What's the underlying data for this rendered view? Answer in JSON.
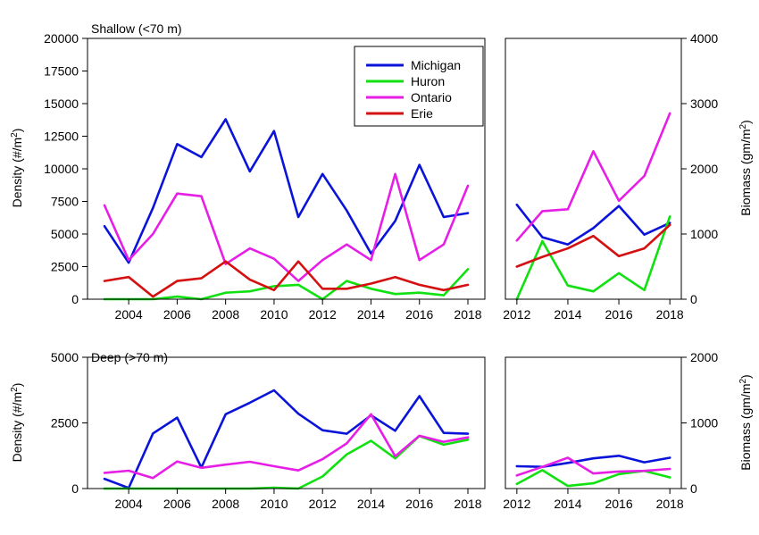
{
  "figure": {
    "ylabel_density": "Density (#/m",
    "ylabel_biomass": "Biomass (gm/m",
    "ylabel_sup": "2",
    "ylabel_close": ")"
  },
  "legend": [
    {
      "name": "Michigan",
      "color": "#0a14d8"
    },
    {
      "name": "Huron",
      "color": "#11e011"
    },
    {
      "name": "Ontario",
      "color": "#e61ee6"
    },
    {
      "name": "Erie",
      "color": "#d41010"
    }
  ],
  "chart_data": [
    {
      "id": "shallow-density",
      "type": "line",
      "title": "Shallow (<70 m)",
      "ylabel": "Density (#/m2)",
      "xlim": [
        2002.3,
        2018.7
      ],
      "ylim": [
        0,
        20000
      ],
      "xticks": [
        2004,
        2006,
        2008,
        2010,
        2012,
        2014,
        2016,
        2018
      ],
      "yticks": [
        0,
        2500,
        5000,
        7500,
        10000,
        12500,
        15000,
        17500,
        20000
      ],
      "x": [
        2003,
        2004,
        2005,
        2006,
        2007,
        2008,
        2009,
        2010,
        2011,
        2012,
        2013,
        2014,
        2015,
        2016,
        2017,
        2018
      ],
      "series": [
        {
          "name": "Michigan",
          "color": "#0a14d8",
          "values": [
            5600,
            2800,
            7000,
            11900,
            10900,
            13800,
            9800,
            12900,
            6300,
            9600,
            6800,
            3500,
            6000,
            10300,
            6300,
            6600
          ]
        },
        {
          "name": "Huron",
          "color": "#11e011",
          "values": [
            0,
            0,
            0,
            200,
            0,
            500,
            600,
            1000,
            1100,
            0,
            1400,
            800,
            400,
            500,
            300,
            2300
          ]
        },
        {
          "name": "Ontario",
          "color": "#e61ee6",
          "values": [
            7200,
            3000,
            5000,
            8100,
            7900,
            2700,
            3900,
            3100,
            1400,
            3000,
            4200,
            3000,
            9600,
            3000,
            4200,
            8700
          ]
        },
        {
          "name": "Erie",
          "color": "#d41010",
          "values": [
            1400,
            1700,
            200,
            1400,
            1600,
            2900,
            1500,
            700,
            2900,
            800,
            800,
            1200,
            1700,
            1100,
            700,
            1100
          ]
        }
      ],
      "legend": "top-right"
    },
    {
      "id": "shallow-biomass",
      "type": "line",
      "ylabel": "Biomass (gm/m2)",
      "xlim": [
        2011.55,
        2018.45
      ],
      "ylim": [
        0,
        4000
      ],
      "xticks": [
        2012,
        2014,
        2016,
        2018
      ],
      "yticks": [
        0,
        1000,
        2000,
        3000,
        4000
      ],
      "x": [
        2012,
        2013,
        2014,
        2015,
        2016,
        2017,
        2018
      ],
      "series": [
        {
          "name": "Michigan",
          "color": "#0a14d8",
          "values": [
            1450,
            950,
            840,
            1090,
            1430,
            990,
            1170
          ]
        },
        {
          "name": "Huron",
          "color": "#11e011",
          "values": [
            0,
            890,
            210,
            120,
            400,
            140,
            1270
          ]
        },
        {
          "name": "Ontario",
          "color": "#e61ee6",
          "values": [
            900,
            1350,
            1380,
            2270,
            1510,
            1890,
            2850
          ]
        },
        {
          "name": "Erie",
          "color": "#d41010",
          "values": [
            500,
            650,
            780,
            970,
            660,
            780,
            1140
          ]
        }
      ]
    },
    {
      "id": "deep-density",
      "type": "line",
      "title": "Deep (>70 m)",
      "ylabel": "Density (#/m2)",
      "xlim": [
        2002.3,
        2018.7
      ],
      "ylim": [
        0,
        5000
      ],
      "xticks": [
        2004,
        2006,
        2008,
        2010,
        2012,
        2014,
        2016,
        2018
      ],
      "yticks": [
        0,
        2500,
        5000
      ],
      "x": [
        2003,
        2004,
        2005,
        2006,
        2007,
        2008,
        2009,
        2010,
        2011,
        2012,
        2013,
        2014,
        2015,
        2016,
        2017,
        2018
      ],
      "series": [
        {
          "name": "Michigan",
          "color": "#0a14d8",
          "values": [
            370,
            20,
            2100,
            2700,
            800,
            2830,
            3270,
            3740,
            2850,
            2220,
            2090,
            2790,
            2200,
            3520,
            2120,
            2090
          ]
        },
        {
          "name": "Huron",
          "color": "#11e011",
          "values": [
            0,
            0,
            0,
            0,
            0,
            0,
            0,
            30,
            0,
            460,
            1300,
            1820,
            1150,
            2000,
            1670,
            1860
          ]
        },
        {
          "name": "Ontario",
          "color": "#e61ee6",
          "values": [
            600,
            680,
            400,
            1030,
            790,
            910,
            1020,
            850,
            690,
            1120,
            1720,
            2830,
            1230,
            2010,
            1780,
            1950
          ]
        }
      ]
    },
    {
      "id": "deep-biomass",
      "type": "line",
      "ylabel": "Biomass (gm/m2)",
      "xlim": [
        2011.55,
        2018.45
      ],
      "ylim": [
        0,
        2000
      ],
      "xticks": [
        2012,
        2014,
        2016,
        2018
      ],
      "yticks": [
        0,
        1000,
        2000
      ],
      "x": [
        2012,
        2013,
        2014,
        2015,
        2016,
        2017,
        2018
      ],
      "series": [
        {
          "name": "Michigan",
          "color": "#0a14d8",
          "values": [
            340,
            330,
            390,
            460,
            500,
            400,
            470
          ]
        },
        {
          "name": "Huron",
          "color": "#11e011",
          "values": [
            70,
            280,
            40,
            80,
            220,
            270,
            170
          ]
        },
        {
          "name": "Ontario",
          "color": "#e61ee6",
          "values": [
            200,
            330,
            470,
            230,
            260,
            270,
            300
          ]
        }
      ]
    }
  ]
}
